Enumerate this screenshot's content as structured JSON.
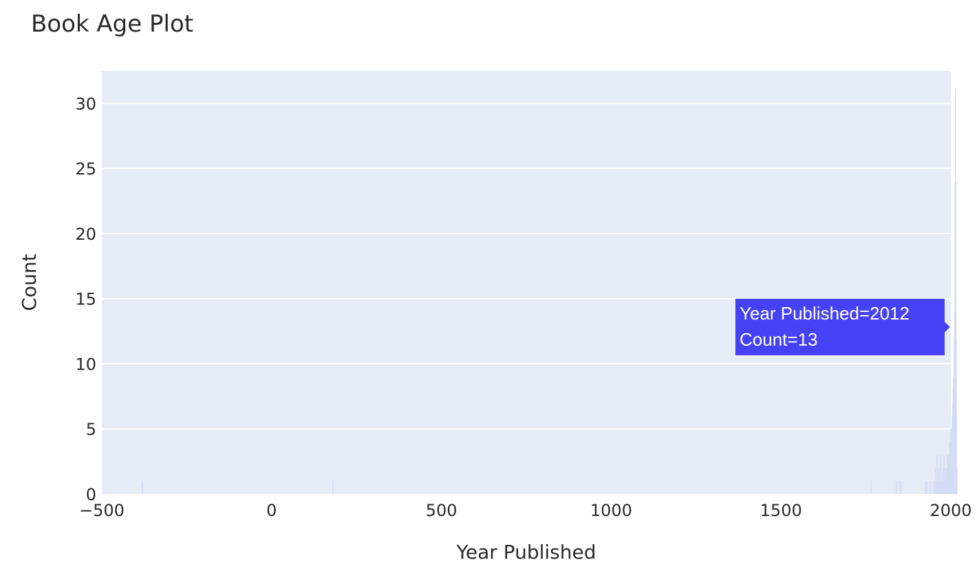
{
  "chart_data": {
    "type": "bar",
    "title": "Book Age Plot",
    "xlabel": "Year Published",
    "ylabel": "Count",
    "xlim": [
      -500,
      2000
    ],
    "ylim": [
      0,
      32.5
    ],
    "x_ticks": [
      -500,
      0,
      500,
      1000,
      1500,
      2000
    ],
    "x_tick_labels": [
      "−500",
      "0",
      "500",
      "1000",
      "1500",
      "2000"
    ],
    "y_ticks": [
      0,
      5,
      10,
      15,
      20,
      25,
      30
    ],
    "y_tick_labels": [
      "0",
      "5",
      "10",
      "15",
      "20",
      "25",
      "30"
    ],
    "grid": true,
    "legend": "none",
    "colors": {
      "plot_bg": "#e5ecf6",
      "grid": "#ffffff",
      "bar": "#d4dcf5",
      "tooltip_bg": "#4542f5",
      "tooltip_border": "#ffffff"
    },
    "bin_width": 1,
    "series": [
      {
        "x": [
          -380,
          180,
          1765,
          1840,
          1850,
          1855,
          1925,
          1930,
          1940,
          1948,
          1953,
          1955,
          1957,
          1960,
          1962,
          1965,
          1967,
          1970,
          1972,
          1975,
          1977,
          1980,
          1983,
          1985,
          1987,
          1990,
          1992,
          1994,
          1995,
          1996,
          1997,
          1998,
          1999,
          2000,
          2001,
          2002,
          2003,
          2004,
          2005,
          2006,
          2007,
          2008,
          2009,
          2010,
          2011,
          2012,
          2013,
          2014,
          2015,
          2016,
          2017,
          2018
        ],
        "values": [
          1,
          1,
          1,
          1,
          1,
          1,
          1,
          1,
          1,
          1,
          1,
          2,
          1,
          3,
          1,
          2,
          1,
          3,
          1,
          2,
          1,
          3,
          2,
          1,
          2,
          3,
          2,
          3,
          1,
          2,
          4,
          3,
          4,
          5,
          4,
          5,
          4,
          6,
          5,
          7,
          8,
          9,
          9,
          12,
          14,
          13,
          24,
          31,
          24,
          12,
          6,
          2
        ]
      }
    ],
    "hover": {
      "line1": "Year Published=2012",
      "line2": "Count=13",
      "x": 2012,
      "y": 13
    }
  }
}
